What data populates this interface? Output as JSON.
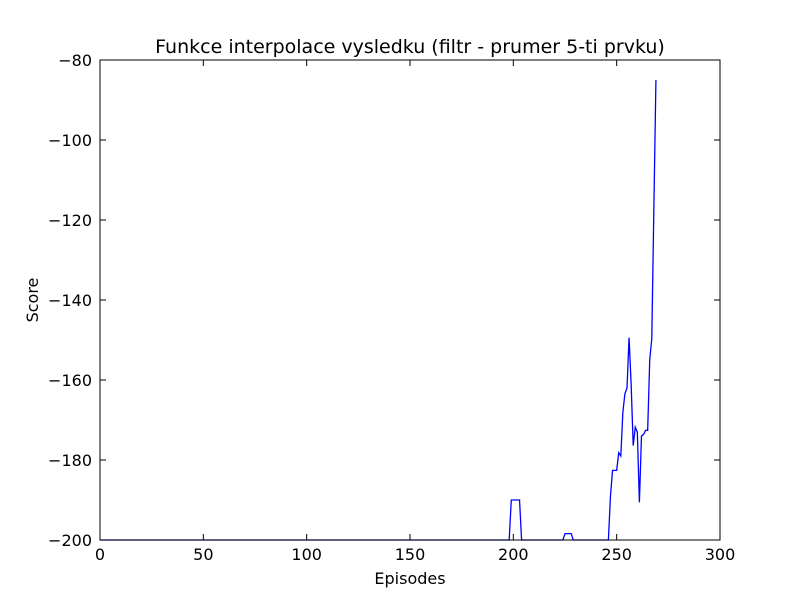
{
  "chart_data": {
    "type": "line",
    "title": "Funkce interpolace vysledku (filtr - prumer 5-ti prvku)",
    "xlabel": "Episodes",
    "ylabel": "Score",
    "xlim": [
      0,
      300
    ],
    "ylim": [
      -200,
      -80
    ],
    "xticks": [
      0,
      50,
      100,
      150,
      200,
      250,
      300
    ],
    "yticks": [
      -200,
      -180,
      -160,
      -140,
      -120,
      -100,
      -80
    ],
    "xtick_labels": [
      "0",
      "50",
      "100",
      "150",
      "200",
      "250",
      "300"
    ],
    "ytick_labels": [
      "−200",
      "−180",
      "−160",
      "−140",
      "−120",
      "−100",
      "−80"
    ],
    "grid": false,
    "line_color": "#0000ff",
    "series": [
      {
        "x": [
          0,
          198,
          199,
          200,
          201,
          202,
          203,
          204,
          205,
          224,
          225,
          226,
          227,
          228,
          229,
          246,
          247,
          248,
          249,
          250,
          251,
          252,
          253,
          254,
          255,
          256,
          257,
          258,
          259,
          260,
          261,
          262,
          263,
          264,
          265,
          266,
          267,
          268,
          269
        ],
        "y": [
          -200,
          -200,
          -190,
          -190,
          -190,
          -190,
          -190,
          -200,
          -200,
          -200,
          -198.4,
          -198.4,
          -198.4,
          -198.4,
          -200,
          -200,
          -189,
          -182.6,
          -182.6,
          -182.6,
          -178.2,
          -179,
          -168,
          -163.4,
          -162,
          -149.4,
          -161,
          -176.4,
          -171.8,
          -173,
          -190.6,
          -174,
          -173.6,
          -172.6,
          -172.6,
          -155,
          -149.6,
          -117,
          -85
        ]
      }
    ]
  }
}
